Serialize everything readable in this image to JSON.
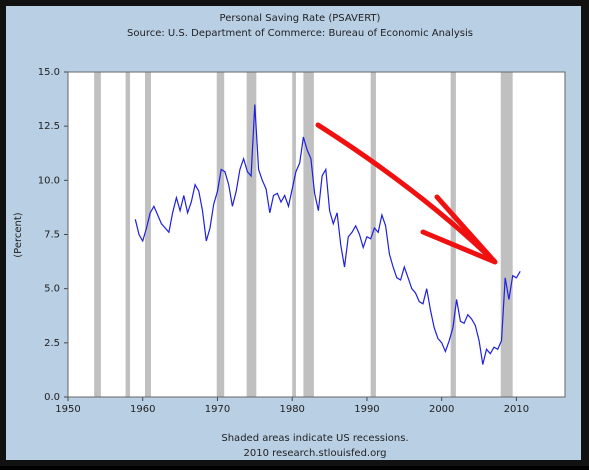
{
  "chart_data": {
    "type": "line",
    "title": "Personal Saving Rate (PSAVERT)",
    "subtitle": "Source: U.S. Department of Commerce: Bureau of Economic Analysis",
    "ylabel": "(Percent)",
    "notes": [
      "Shaded areas indicate US recessions.",
      "2010 research.stlouisfed.org"
    ],
    "xlim": [
      1950,
      2016.5
    ],
    "xticks": [
      1950,
      1960,
      1970,
      1980,
      1990,
      2000,
      2010
    ],
    "ylim": [
      0,
      15
    ],
    "yticks": [
      {
        "value": 0,
        "label": "0.0"
      },
      2.5,
      {
        "value": 5,
        "label": "5.0"
      },
      7.5,
      {
        "value": 10,
        "label": "10.0"
      },
      12.5,
      {
        "value": 15,
        "label": "15.0"
      }
    ],
    "recessions": [
      [
        1953.5,
        1954.4
      ],
      [
        1957.7,
        1958.3
      ],
      [
        1960.3,
        1961.1
      ],
      [
        1969.9,
        1970.9
      ],
      [
        1973.9,
        1975.2
      ],
      [
        1980.0,
        1980.5
      ],
      [
        1981.5,
        1982.9
      ],
      [
        1990.5,
        1991.2
      ],
      [
        2001.2,
        2001.9
      ],
      [
        2007.9,
        2009.5
      ]
    ],
    "recession_color": "#c0c0c0",
    "series": [
      {
        "color": "#1f1fe0",
        "x": [
          1959,
          1959.5,
          1960,
          1960.5,
          1961,
          1961.5,
          1962,
          1962.5,
          1963,
          1963.5,
          1964,
          1964.5,
          1965,
          1965.5,
          1966,
          1966.5,
          1967,
          1967.5,
          1968,
          1968.5,
          1969,
          1969.5,
          1970,
          1970.5,
          1971,
          1971.5,
          1972,
          1972.5,
          1973,
          1973.5,
          1974,
          1974.5,
          1975,
          1975.5,
          1976,
          1976.5,
          1977,
          1977.5,
          1978,
          1978.5,
          1979,
          1979.5,
          1980,
          1980.5,
          1981,
          1981.5,
          1982,
          1982.5,
          1983,
          1983.5,
          1984,
          1984.5,
          1985,
          1985.5,
          1986,
          1986.5,
          1987,
          1987.5,
          1988,
          1988.5,
          1989,
          1989.5,
          1990,
          1990.5,
          1991,
          1991.5,
          1992,
          1992.5,
          1993,
          1993.5,
          1994,
          1994.5,
          1995,
          1995.5,
          1996,
          1996.5,
          1997,
          1997.5,
          1998,
          1998.5,
          1999,
          1999.5,
          2000,
          2000.5,
          2001,
          2001.5,
          2002,
          2002.5,
          2003,
          2003.5,
          2004,
          2004.5,
          2005,
          2005.5,
          2006,
          2006.5,
          2007,
          2007.5,
          2008,
          2008.5,
          2009,
          2009.5,
          2010,
          2010.5
        ],
        "values": [
          8.2,
          7.5,
          7.2,
          7.8,
          8.5,
          8.8,
          8.4,
          8.0,
          7.8,
          7.6,
          8.5,
          9.2,
          8.6,
          9.3,
          8.5,
          9.0,
          9.8,
          9.5,
          8.6,
          7.2,
          7.8,
          8.9,
          9.5,
          10.5,
          10.4,
          9.8,
          8.8,
          9.5,
          10.5,
          11.0,
          10.4,
          10.2,
          13.5,
          10.5,
          10.0,
          9.6,
          8.5,
          9.3,
          9.4,
          9.0,
          9.3,
          8.8,
          9.6,
          10.4,
          10.8,
          12.0,
          11.4,
          11.0,
          9.4,
          8.6,
          10.2,
          10.5,
          8.6,
          8.0,
          8.5,
          7.0,
          6.0,
          7.4,
          7.6,
          7.9,
          7.5,
          6.9,
          7.4,
          7.3,
          7.8,
          7.6,
          8.4,
          7.9,
          6.6,
          6.0,
          5.5,
          5.4,
          6.0,
          5.5,
          5.0,
          4.8,
          4.4,
          4.3,
          5.0,
          4.0,
          3.2,
          2.7,
          2.5,
          2.1,
          2.6,
          3.2,
          4.5,
          3.5,
          3.4,
          3.8,
          3.6,
          3.3,
          2.6,
          1.5,
          2.2,
          2.0,
          2.3,
          2.2,
          2.6,
          5.5,
          4.5,
          5.6,
          5.5,
          5.8
        ]
      }
    ]
  }
}
